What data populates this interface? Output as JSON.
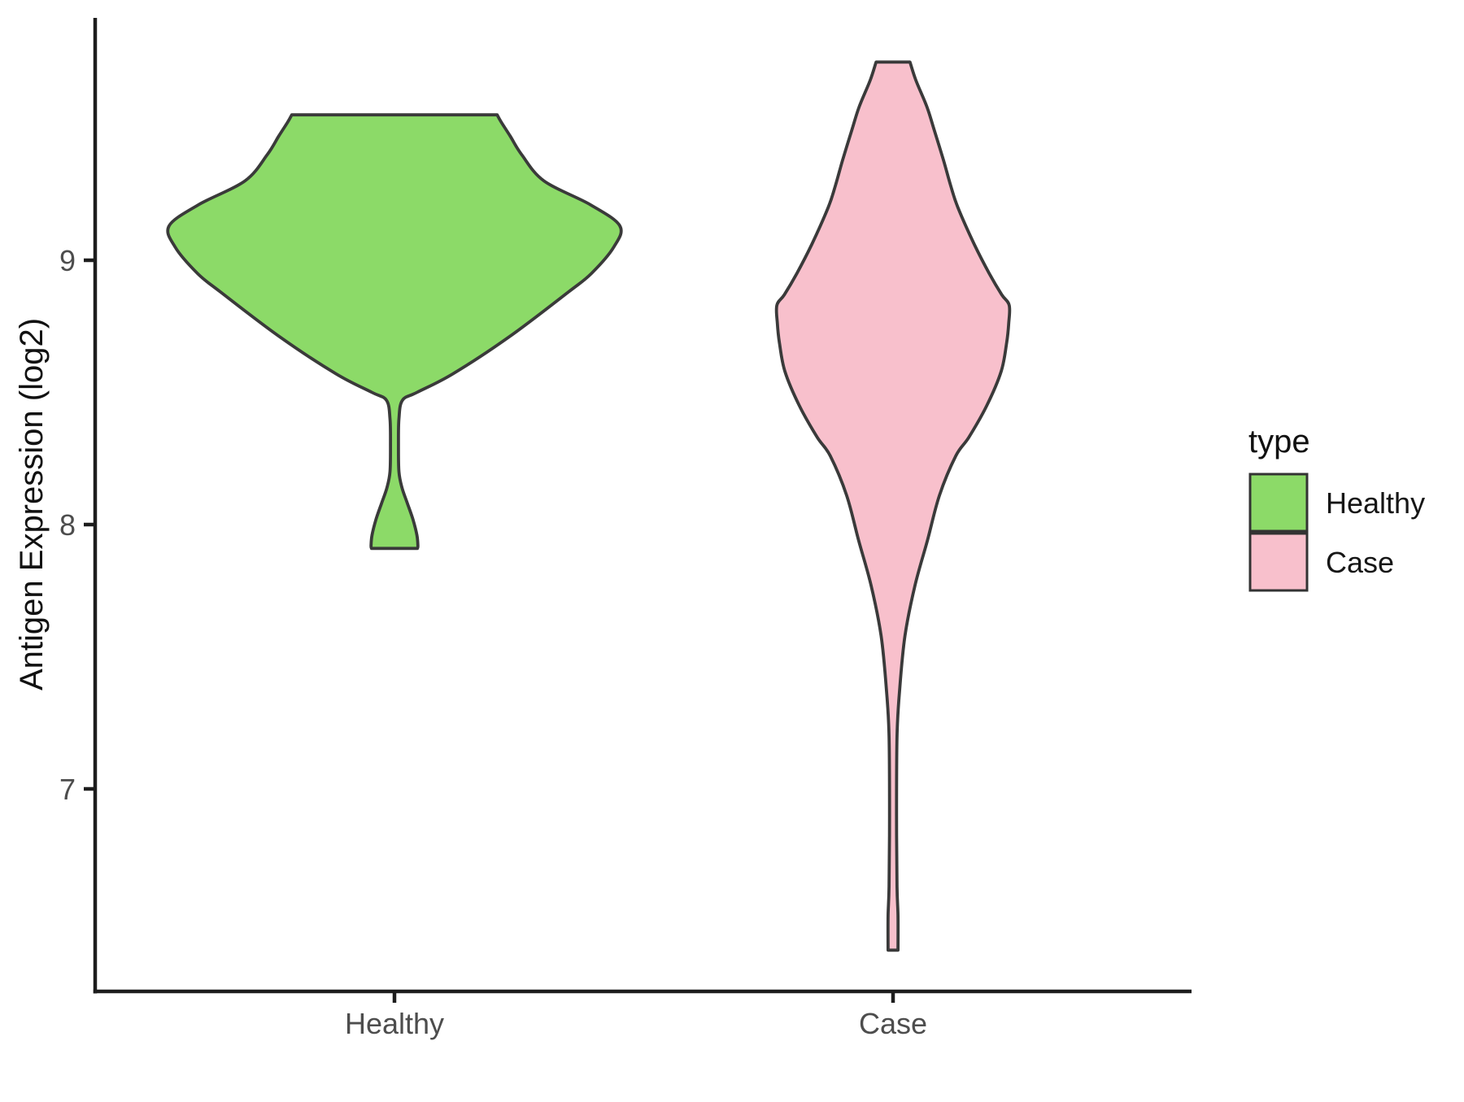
{
  "chart_data": {
    "type": "violin",
    "title": "",
    "xlabel": "",
    "ylabel": "Antigen Expression (log2)",
    "categories": [
      "Healthy",
      "Case"
    ],
    "y_ticks": [
      7,
      8,
      9
    ],
    "ylim_panel": [
      6.24,
      9.92
    ],
    "grid": "off",
    "legend_position": "right",
    "colors": {
      "healthy_fill": "#8CDA68",
      "case_fill": "#F8C0CC",
      "violin_outline": "#3A3A3A",
      "axis_line": "#1D1D1D",
      "tick_label": "#4D4D4D",
      "text": "#111111"
    },
    "legend": {
      "title": "type",
      "entries": [
        {
          "label": "Healthy",
          "color": "#8CDA68"
        },
        {
          "label": "Case",
          "color": "#F8C0CC"
        }
      ]
    },
    "series": [
      {
        "name": "Healthy",
        "x": 1,
        "fill": "#8CDA68",
        "outline": "#3A3A3A",
        "value_range": [
          7.91,
          9.55
        ],
        "profile": [
          [
            9.55,
            0.206
          ],
          [
            9.52,
            0.215
          ],
          [
            9.47,
            0.232
          ],
          [
            9.4,
            0.255
          ],
          [
            9.3,
            0.3
          ],
          [
            9.21,
            0.393
          ],
          [
            9.13,
            0.452
          ],
          [
            9.05,
            0.44
          ],
          [
            8.95,
            0.395
          ],
          [
            8.88,
            0.349
          ],
          [
            8.71,
            0.23
          ],
          [
            8.57,
            0.117
          ],
          [
            8.5,
            0.045
          ],
          [
            8.47,
            0.016
          ],
          [
            8.4,
            0.009
          ],
          [
            8.3,
            0.008
          ],
          [
            8.2,
            0.009
          ],
          [
            8.14,
            0.015
          ],
          [
            8.08,
            0.026
          ],
          [
            8.02,
            0.037
          ],
          [
            7.96,
            0.045
          ],
          [
            7.92,
            0.047
          ],
          [
            7.91,
            0.046
          ]
        ]
      },
      {
        "name": "Case",
        "x": 2,
        "fill": "#F8C0CC",
        "outline": "#3A3A3A",
        "value_range": [
          6.39,
          9.75
        ],
        "profile": [
          [
            9.75,
            0.034
          ],
          [
            9.68,
            0.046
          ],
          [
            9.58,
            0.068
          ],
          [
            9.49,
            0.083
          ],
          [
            9.38,
            0.101
          ],
          [
            9.28,
            0.116
          ],
          [
            9.2,
            0.13
          ],
          [
            9.06,
            0.163
          ],
          [
            8.95,
            0.193
          ],
          [
            8.87,
            0.218
          ],
          [
            8.83,
            0.233
          ],
          [
            8.76,
            0.232
          ],
          [
            8.69,
            0.228
          ],
          [
            8.58,
            0.217
          ],
          [
            8.45,
            0.188
          ],
          [
            8.33,
            0.152
          ],
          [
            8.26,
            0.126
          ],
          [
            8.11,
            0.093
          ],
          [
            7.94,
            0.069
          ],
          [
            7.77,
            0.044
          ],
          [
            7.58,
            0.024
          ],
          [
            7.37,
            0.013
          ],
          [
            7.2,
            0.008
          ],
          [
            6.9,
            0.007
          ],
          [
            6.63,
            0.008
          ],
          [
            6.52,
            0.01
          ],
          [
            6.39,
            0.01
          ]
        ]
      }
    ]
  }
}
